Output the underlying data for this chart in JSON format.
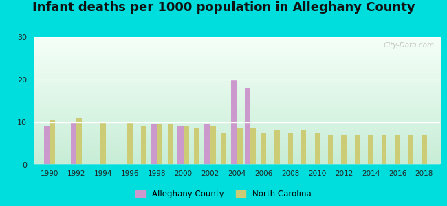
{
  "title": "Infant deaths per 1000 population in Alleghany County",
  "years": [
    1990,
    1991,
    1992,
    1993,
    1994,
    1995,
    1996,
    1997,
    1998,
    1999,
    2000,
    2001,
    2002,
    2003,
    2004,
    2005,
    2006,
    2007,
    2008,
    2009,
    2010,
    2011,
    2012,
    2013,
    2014,
    2015,
    2016,
    2017,
    2018
  ],
  "alleghany": [
    9.0,
    0,
    10.0,
    0,
    0,
    0,
    0,
    0,
    9.5,
    0,
    9.0,
    0,
    9.5,
    0,
    20.0,
    18.0,
    0,
    0,
    0,
    0,
    0,
    0,
    0,
    0,
    0,
    0,
    0,
    0,
    0
  ],
  "nc": [
    10.5,
    0,
    11.0,
    0,
    10.0,
    0,
    10.0,
    9.0,
    9.5,
    9.5,
    9.0,
    8.5,
    9.0,
    7.5,
    8.5,
    8.5,
    7.5,
    8.0,
    7.5,
    8.0,
    7.5,
    7.0,
    7.0,
    7.0,
    7.0,
    7.0,
    7.0,
    7.0,
    7.0
  ],
  "alleghany_color": "#cc99cc",
  "nc_color": "#cccc77",
  "background_outer": "#00dddd",
  "ylim": [
    0,
    30
  ],
  "yticks": [
    0,
    10,
    20,
    30
  ],
  "xlim": [
    1988.8,
    2019.2
  ],
  "title_fontsize": 13,
  "watermark": "City-Data.com",
  "bar_width": 0.42
}
